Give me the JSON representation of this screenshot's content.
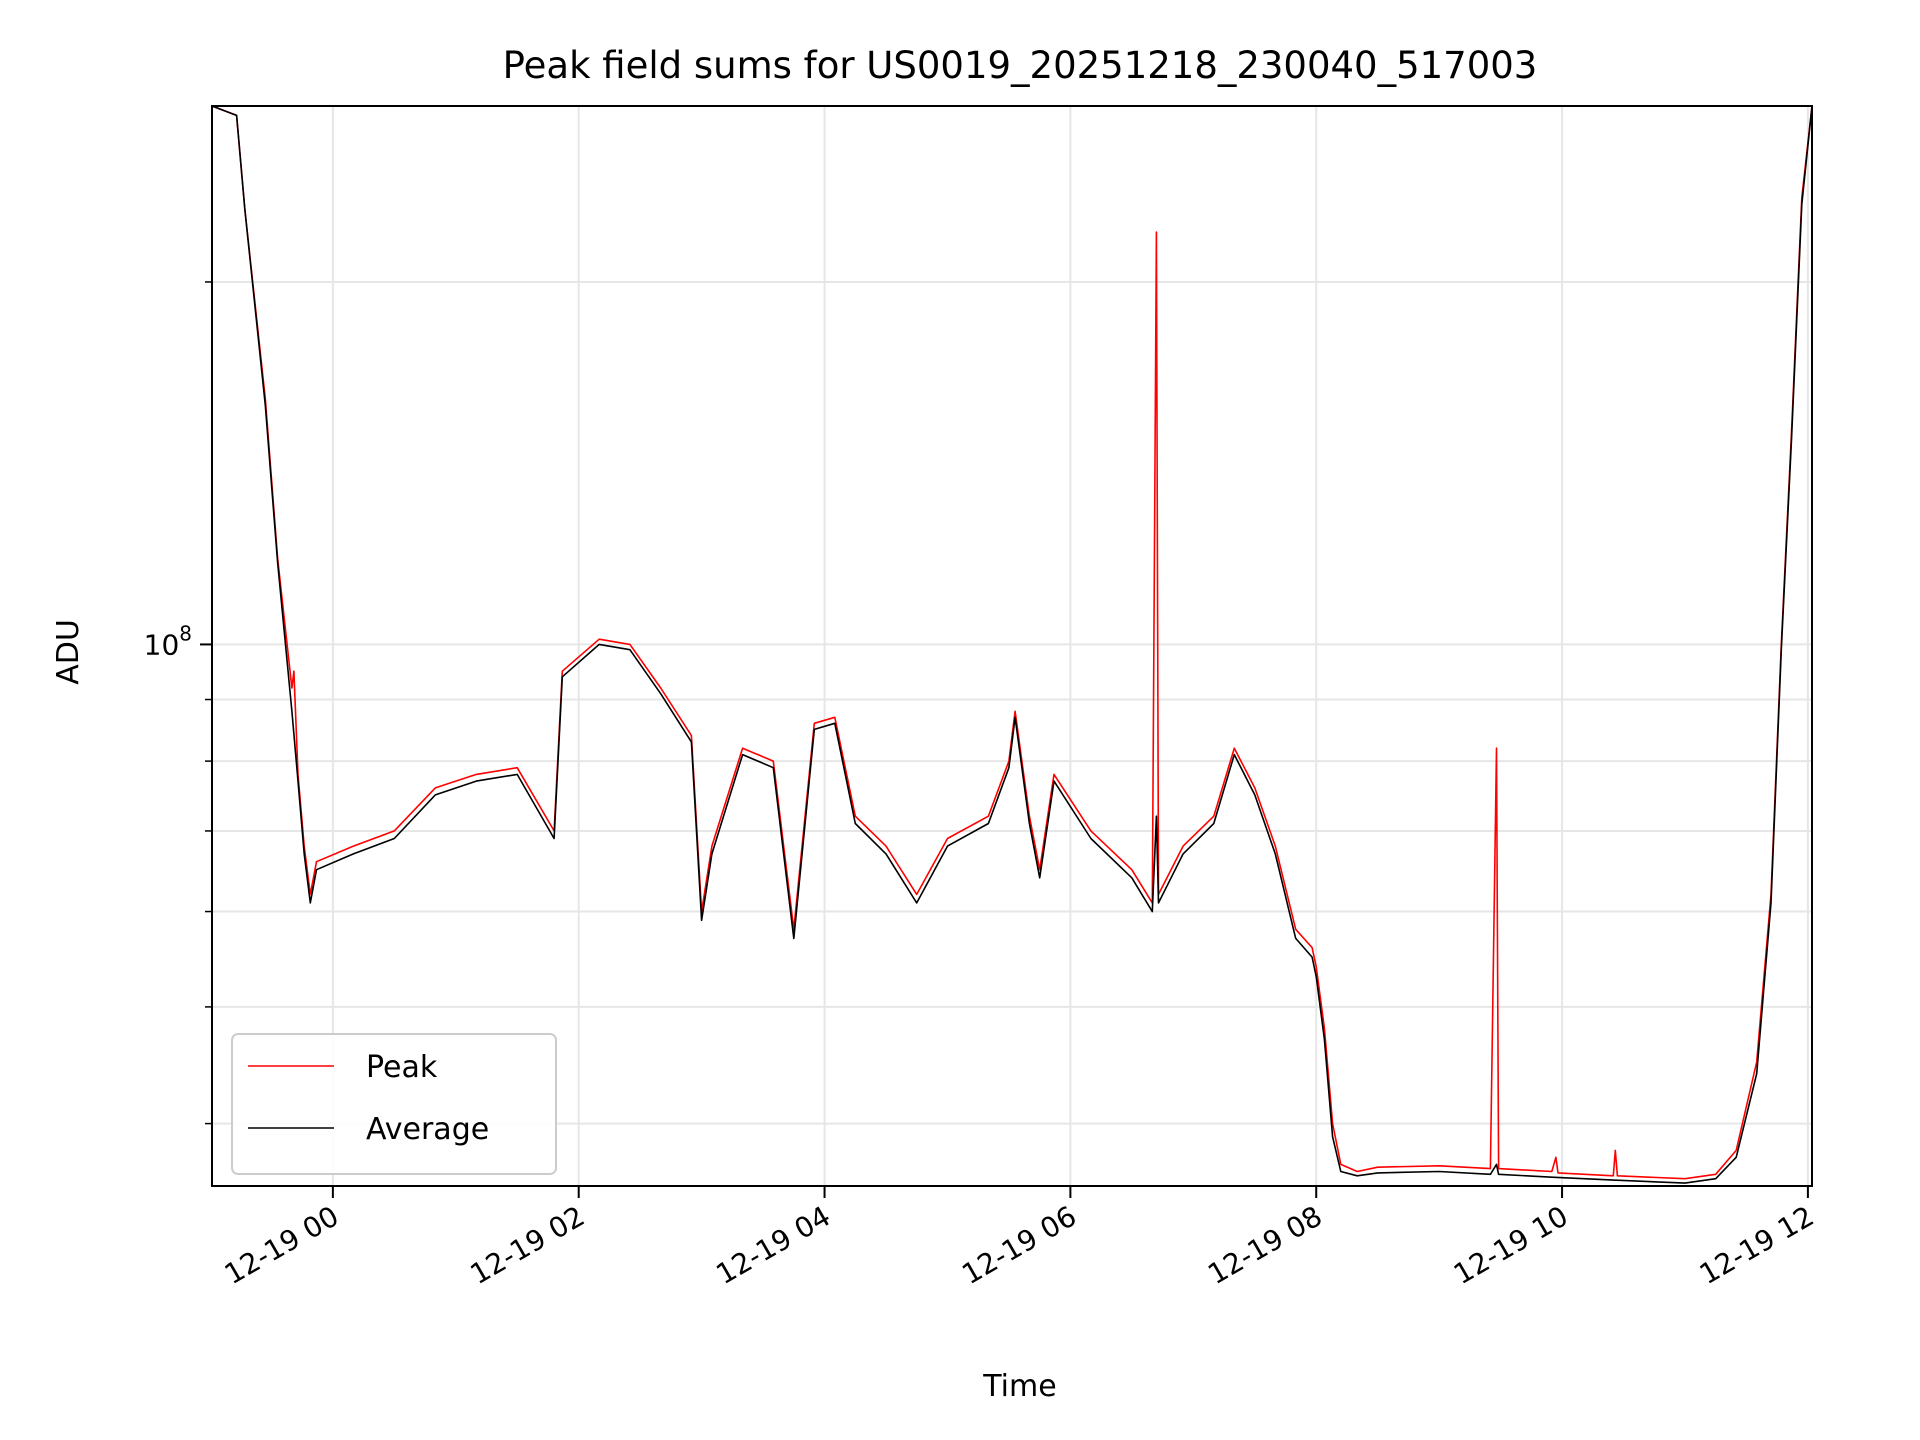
{
  "chart_data": {
    "type": "line",
    "title": "Peak field sums for US0019_20251218_230040_517003",
    "xlabel": "Time",
    "ylabel": "ADU",
    "y_scale": "log",
    "x_range": [
      "2025-12-18 23:01",
      "2025-12-19 12:02"
    ],
    "y_range": [
      35500000,
      280000000
    ],
    "x_ticks": [
      {
        "label": "12-19 00",
        "x": "2025-12-19 00:00"
      },
      {
        "label": "12-19 02",
        "x": "2025-12-19 02:00"
      },
      {
        "label": "12-19 04",
        "x": "2025-12-19 04:00"
      },
      {
        "label": "12-19 06",
        "x": "2025-12-19 06:00"
      },
      {
        "label": "12-19 08",
        "x": "2025-12-19 08:00"
      },
      {
        "label": "12-19 10",
        "x": "2025-12-19 10:00"
      },
      {
        "label": "12-19 12",
        "x": "2025-12-19 12:00"
      }
    ],
    "y_major_ticks": [
      {
        "label_base": "10",
        "label_exp": "8",
        "value": 100000000
      }
    ],
    "y_minor_gridlines": [
      40000000,
      50000000,
      60000000,
      70000000,
      80000000,
      90000000,
      200000000
    ],
    "grid": true,
    "legend_position": "lower-left",
    "series": [
      {
        "name": "Peak",
        "color": "#ff0000",
        "points": [
          [
            "2025-12-18 23:01",
            280000000
          ],
          [
            "2025-12-18 23:13",
            275000000
          ],
          [
            "2025-12-18 23:17",
            230000000
          ],
          [
            "2025-12-18 23:27",
            160000000
          ],
          [
            "2025-12-18 23:33",
            118000000
          ],
          [
            "2025-12-18 23:40",
            92000000
          ],
          [
            "2025-12-18 23:41",
            95000000
          ],
          [
            "2025-12-18 23:43",
            78000000
          ],
          [
            "2025-12-18 23:46",
            68000000
          ],
          [
            "2025-12-18 23:49",
            62000000
          ],
          [
            "2025-12-18 23:52",
            66000000
          ],
          [
            "2025-12-19 00:10",
            68000000
          ],
          [
            "2025-12-19 00:30",
            70000000
          ],
          [
            "2025-12-19 00:50",
            76000000
          ],
          [
            "2025-12-19 01:10",
            78000000
          ],
          [
            "2025-12-19 01:30",
            79000000
          ],
          [
            "2025-12-19 01:48",
            70000000
          ],
          [
            "2025-12-19 01:52",
            95000000
          ],
          [
            "2025-12-19 02:10",
            101000000
          ],
          [
            "2025-12-19 02:25",
            100000000
          ],
          [
            "2025-12-19 02:40",
            92000000
          ],
          [
            "2025-12-19 02:55",
            84000000
          ],
          [
            "2025-12-19 03:00",
            60000000
          ],
          [
            "2025-12-19 03:05",
            68000000
          ],
          [
            "2025-12-19 03:20",
            82000000
          ],
          [
            "2025-12-19 03:35",
            80000000
          ],
          [
            "2025-12-19 03:45",
            58000000
          ],
          [
            "2025-12-19 03:55",
            86000000
          ],
          [
            "2025-12-19 04:05",
            87000000
          ],
          [
            "2025-12-19 04:15",
            72000000
          ],
          [
            "2025-12-19 04:30",
            68000000
          ],
          [
            "2025-12-19 04:45",
            62000000
          ],
          [
            "2025-12-19 05:00",
            69000000
          ],
          [
            "2025-12-19 05:20",
            72000000
          ],
          [
            "2025-12-19 05:30",
            80000000
          ],
          [
            "2025-12-19 05:33",
            88000000
          ],
          [
            "2025-12-19 05:40",
            72000000
          ],
          [
            "2025-12-19 05:45",
            65000000
          ],
          [
            "2025-12-19 05:52",
            78000000
          ],
          [
            "2025-12-19 06:10",
            70000000
          ],
          [
            "2025-12-19 06:30",
            65000000
          ],
          [
            "2025-12-19 06:40",
            61000000
          ],
          [
            "2025-12-19 06:42",
            220000000
          ],
          [
            "2025-12-19 06:43",
            62000000
          ],
          [
            "2025-12-19 06:55",
            68000000
          ],
          [
            "2025-12-19 07:10",
            72000000
          ],
          [
            "2025-12-19 07:20",
            82000000
          ],
          [
            "2025-12-19 07:30",
            76000000
          ],
          [
            "2025-12-19 07:40",
            68000000
          ],
          [
            "2025-12-19 07:50",
            58000000
          ],
          [
            "2025-12-19 07:58",
            56000000
          ],
          [
            "2025-12-19 08:00",
            54000000
          ],
          [
            "2025-12-19 08:04",
            48000000
          ],
          [
            "2025-12-19 08:08",
            40000000
          ],
          [
            "2025-12-19 08:12",
            37000000
          ],
          [
            "2025-12-19 08:20",
            36500000
          ],
          [
            "2025-12-19 08:30",
            36800000
          ],
          [
            "2025-12-19 09:00",
            36900000
          ],
          [
            "2025-12-19 09:25",
            36700000
          ],
          [
            "2025-12-19 09:28",
            82000000
          ],
          [
            "2025-12-19 09:29",
            36700000
          ],
          [
            "2025-12-19 09:55",
            36500000
          ],
          [
            "2025-12-19 09:57",
            37500000
          ],
          [
            "2025-12-19 09:58",
            36400000
          ],
          [
            "2025-12-19 10:25",
            36200000
          ],
          [
            "2025-12-19 10:26",
            38000000
          ],
          [
            "2025-12-19 10:27",
            36200000
          ],
          [
            "2025-12-19 11:00",
            36000000
          ],
          [
            "2025-12-19 11:15",
            36300000
          ],
          [
            "2025-12-19 11:25",
            38000000
          ],
          [
            "2025-12-19 11:35",
            45000000
          ],
          [
            "2025-12-19 11:42",
            62000000
          ],
          [
            "2025-12-19 11:47",
            100000000
          ],
          [
            "2025-12-19 11:52",
            150000000
          ],
          [
            "2025-12-19 11:57",
            235000000
          ],
          [
            "2025-12-19 12:02",
            280000000
          ]
        ]
      },
      {
        "name": "Average",
        "color": "#000000",
        "points": [
          [
            "2025-12-18 23:01",
            280000000
          ],
          [
            "2025-12-18 23:13",
            275000000
          ],
          [
            "2025-12-18 23:17",
            230000000
          ],
          [
            "2025-12-18 23:27",
            158000000
          ],
          [
            "2025-12-18 23:33",
            117000000
          ],
          [
            "2025-12-18 23:40",
            88000000
          ],
          [
            "2025-12-18 23:43",
            77000000
          ],
          [
            "2025-12-18 23:46",
            67000000
          ],
          [
            "2025-12-18 23:49",
            61000000
          ],
          [
            "2025-12-18 23:52",
            65000000
          ],
          [
            "2025-12-19 00:10",
            67000000
          ],
          [
            "2025-12-19 00:30",
            69000000
          ],
          [
            "2025-12-19 00:50",
            75000000
          ],
          [
            "2025-12-19 01:10",
            77000000
          ],
          [
            "2025-12-19 01:30",
            78000000
          ],
          [
            "2025-12-19 01:48",
            69000000
          ],
          [
            "2025-12-19 01:52",
            94000000
          ],
          [
            "2025-12-19 02:10",
            100000000
          ],
          [
            "2025-12-19 02:25",
            99000000
          ],
          [
            "2025-12-19 02:40",
            91000000
          ],
          [
            "2025-12-19 02:55",
            83000000
          ],
          [
            "2025-12-19 03:00",
            59000000
          ],
          [
            "2025-12-19 03:05",
            67000000
          ],
          [
            "2025-12-19 03:20",
            81000000
          ],
          [
            "2025-12-19 03:35",
            79000000
          ],
          [
            "2025-12-19 03:45",
            57000000
          ],
          [
            "2025-12-19 03:55",
            85000000
          ],
          [
            "2025-12-19 04:05",
            86000000
          ],
          [
            "2025-12-19 04:15",
            71000000
          ],
          [
            "2025-12-19 04:30",
            67000000
          ],
          [
            "2025-12-19 04:45",
            61000000
          ],
          [
            "2025-12-19 05:00",
            68000000
          ],
          [
            "2025-12-19 05:20",
            71000000
          ],
          [
            "2025-12-19 05:30",
            79000000
          ],
          [
            "2025-12-19 05:33",
            87000000
          ],
          [
            "2025-12-19 05:40",
            71000000
          ],
          [
            "2025-12-19 05:45",
            64000000
          ],
          [
            "2025-12-19 05:52",
            77000000
          ],
          [
            "2025-12-19 06:10",
            69000000
          ],
          [
            "2025-12-19 06:30",
            64000000
          ],
          [
            "2025-12-19 06:40",
            60000000
          ],
          [
            "2025-12-19 06:42",
            72000000
          ],
          [
            "2025-12-19 06:43",
            61000000
          ],
          [
            "2025-12-19 06:55",
            67000000
          ],
          [
            "2025-12-19 07:10",
            71000000
          ],
          [
            "2025-12-19 07:20",
            81000000
          ],
          [
            "2025-12-19 07:30",
            75000000
          ],
          [
            "2025-12-19 07:40",
            67000000
          ],
          [
            "2025-12-19 07:50",
            57000000
          ],
          [
            "2025-12-19 07:58",
            55000000
          ],
          [
            "2025-12-19 08:00",
            53000000
          ],
          [
            "2025-12-19 08:04",
            47000000
          ],
          [
            "2025-12-19 08:08",
            39000000
          ],
          [
            "2025-12-19 08:12",
            36500000
          ],
          [
            "2025-12-19 08:20",
            36200000
          ],
          [
            "2025-12-19 08:30",
            36400000
          ],
          [
            "2025-12-19 09:00",
            36500000
          ],
          [
            "2025-12-19 09:25",
            36300000
          ],
          [
            "2025-12-19 09:28",
            37000000
          ],
          [
            "2025-12-19 09:29",
            36300000
          ],
          [
            "2025-12-19 09:55",
            36100000
          ],
          [
            "2025-12-19 10:25",
            35900000
          ],
          [
            "2025-12-19 11:00",
            35700000
          ],
          [
            "2025-12-19 11:15",
            36000000
          ],
          [
            "2025-12-19 11:25",
            37500000
          ],
          [
            "2025-12-19 11:35",
            44000000
          ],
          [
            "2025-12-19 11:42",
            61000000
          ],
          [
            "2025-12-19 11:47",
            99000000
          ],
          [
            "2025-12-19 11:52",
            148000000
          ],
          [
            "2025-12-19 11:57",
            232000000
          ],
          [
            "2025-12-19 12:02",
            280000000
          ]
        ]
      }
    ]
  }
}
